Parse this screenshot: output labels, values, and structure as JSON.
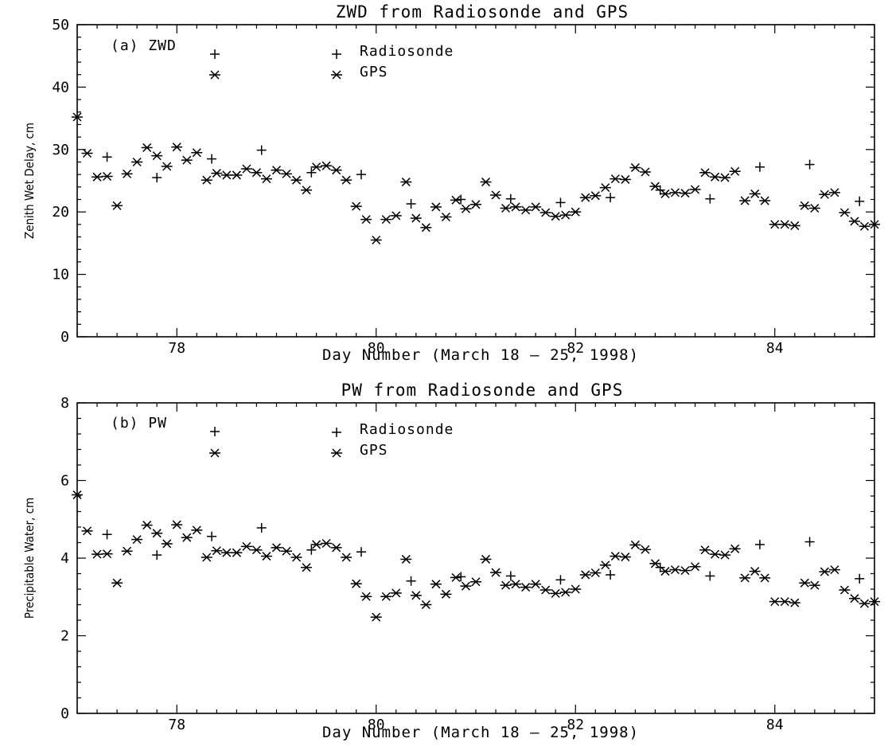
{
  "chart_data": [
    {
      "type": "scatter",
      "title": "ZWD from Radiosonde and GPS",
      "panel_label": "(a) ZWD",
      "xlabel": "Day Number (March 18 – 25, 1998)",
      "ylabel": "Zenith Wet Delay, cm",
      "xlim": [
        77.0,
        85.0
      ],
      "ylim": [
        0,
        50
      ],
      "xticks": [
        78,
        80,
        82,
        84
      ],
      "yticks": [
        0,
        10,
        20,
        30,
        40,
        50
      ],
      "legend": {
        "placement": "top-center",
        "entries": [
          "Radiosonde",
          "GPS"
        ]
      },
      "series": [
        {
          "name": "Radiosonde",
          "marker": "plus",
          "x": [
            77.3,
            77.8,
            78.35,
            78.85,
            79.35,
            79.85,
            80.35,
            80.85,
            81.35,
            81.85,
            82.35,
            82.85,
            83.35,
            83.85,
            84.35,
            84.85
          ],
          "y": [
            28.8,
            25.5,
            28.5,
            29.9,
            26.3,
            26.0,
            21.3,
            22.0,
            22.1,
            21.5,
            22.3,
            23.5,
            22.1,
            27.2,
            27.6,
            21.7
          ]
        },
        {
          "name": "GPS",
          "marker": "asterisk",
          "x": [
            77.0,
            77.1,
            77.2,
            77.3,
            77.4,
            77.5,
            77.6,
            77.7,
            77.8,
            77.9,
            78.0,
            78.1,
            78.2,
            78.3,
            78.4,
            78.5,
            78.6,
            78.7,
            78.8,
            78.9,
            79.0,
            79.1,
            79.2,
            79.3,
            79.4,
            79.5,
            79.6,
            79.7,
            79.8,
            79.9,
            80.0,
            80.1,
            80.2,
            80.3,
            80.4,
            80.5,
            80.6,
            80.7,
            80.8,
            80.9,
            81.0,
            81.1,
            81.2,
            81.3,
            81.4,
            81.5,
            81.6,
            81.7,
            81.8,
            81.9,
            82.0,
            82.1,
            82.2,
            82.3,
            82.4,
            82.5,
            82.6,
            82.7,
            82.8,
            82.9,
            83.0,
            83.1,
            83.2,
            83.3,
            83.4,
            83.5,
            83.6,
            83.7,
            83.8,
            83.9,
            84.0,
            84.1,
            84.2,
            84.3,
            84.4,
            84.5,
            84.6,
            84.7,
            84.8,
            84.9,
            85.0
          ],
          "y": [
            35.2,
            29.4,
            25.6,
            25.7,
            21.0,
            26.1,
            28.0,
            30.3,
            29.0,
            27.3,
            30.4,
            28.3,
            29.5,
            25.1,
            26.2,
            25.9,
            25.9,
            26.9,
            26.3,
            25.3,
            26.7,
            26.1,
            25.1,
            23.5,
            27.2,
            27.4,
            26.7,
            25.1,
            20.9,
            18.8,
            15.5,
            18.8,
            19.4,
            24.8,
            19.0,
            17.5,
            20.8,
            19.2,
            21.9,
            20.5,
            21.2,
            24.8,
            22.7,
            20.6,
            20.8,
            20.3,
            20.8,
            19.9,
            19.3,
            19.5,
            20.0,
            22.3,
            22.6,
            23.9,
            25.3,
            25.2,
            27.1,
            26.4,
            24.1,
            22.9,
            23.1,
            23.0,
            23.6,
            26.3,
            25.6,
            25.5,
            26.5,
            21.8,
            22.9,
            21.8,
            18.0,
            18.0,
            17.8,
            21.0,
            20.6,
            22.8,
            23.1,
            19.9,
            18.5,
            17.7,
            18.0
          ]
        }
      ]
    },
    {
      "type": "scatter",
      "title": "PW from Radiosonde and GPS",
      "panel_label": "(b) PW",
      "xlabel": "Day Number (March 18 – 25, 1998)",
      "ylabel": "Precipitable Water, cm",
      "xlim": [
        77.0,
        85.0
      ],
      "ylim": [
        0,
        8
      ],
      "xticks": [
        78,
        80,
        82,
        84
      ],
      "yticks": [
        0,
        2,
        4,
        6,
        8
      ],
      "legend": {
        "placement": "top-center",
        "entries": [
          "Radiosonde",
          "GPS"
        ]
      },
      "series": [
        {
          "name": "Radiosonde",
          "marker": "plus",
          "x": [
            77.3,
            77.8,
            78.35,
            78.85,
            79.35,
            79.85,
            80.35,
            80.85,
            81.35,
            81.85,
            82.35,
            82.85,
            83.35,
            83.85,
            84.35,
            84.85
          ],
          "y": [
            4.61,
            4.08,
            4.56,
            4.78,
            4.21,
            4.16,
            3.41,
            3.52,
            3.54,
            3.44,
            3.57,
            3.76,
            3.54,
            4.35,
            4.42,
            3.47
          ]
        },
        {
          "name": "GPS",
          "marker": "asterisk",
          "x": [
            77.0,
            77.1,
            77.2,
            77.3,
            77.4,
            77.5,
            77.6,
            77.7,
            77.8,
            77.9,
            78.0,
            78.1,
            78.2,
            78.3,
            78.4,
            78.5,
            78.6,
            78.7,
            78.8,
            78.9,
            79.0,
            79.1,
            79.2,
            79.3,
            79.4,
            79.5,
            79.6,
            79.7,
            79.8,
            79.9,
            80.0,
            80.1,
            80.2,
            80.3,
            80.4,
            80.5,
            80.6,
            80.7,
            80.8,
            80.9,
            81.0,
            81.1,
            81.2,
            81.3,
            81.4,
            81.5,
            81.6,
            81.7,
            81.8,
            81.9,
            82.0,
            82.1,
            82.2,
            82.3,
            82.4,
            82.5,
            82.6,
            82.7,
            82.8,
            82.9,
            83.0,
            83.1,
            83.2,
            83.3,
            83.4,
            83.5,
            83.6,
            83.7,
            83.8,
            83.9,
            84.0,
            84.1,
            84.2,
            84.3,
            84.4,
            84.5,
            84.6,
            84.7,
            84.8,
            84.9,
            85.0
          ],
          "y": [
            5.63,
            4.7,
            4.1,
            4.11,
            3.36,
            4.18,
            4.48,
            4.85,
            4.64,
            4.37,
            4.86,
            4.53,
            4.72,
            4.02,
            4.19,
            4.14,
            4.14,
            4.3,
            4.21,
            4.05,
            4.27,
            4.18,
            4.02,
            3.76,
            4.35,
            4.38,
            4.27,
            4.02,
            3.34,
            3.01,
            2.48,
            3.01,
            3.1,
            3.97,
            3.04,
            2.8,
            3.33,
            3.07,
            3.5,
            3.28,
            3.39,
            3.97,
            3.63,
            3.3,
            3.33,
            3.25,
            3.33,
            3.18,
            3.09,
            3.12,
            3.2,
            3.57,
            3.62,
            3.82,
            4.05,
            4.03,
            4.34,
            4.22,
            3.86,
            3.66,
            3.7,
            3.68,
            3.78,
            4.21,
            4.1,
            4.08,
            4.24,
            3.49,
            3.66,
            3.49,
            2.88,
            2.88,
            2.85,
            3.36,
            3.3,
            3.65,
            3.7,
            3.18,
            2.96,
            2.83,
            2.88
          ]
        }
      ]
    }
  ]
}
